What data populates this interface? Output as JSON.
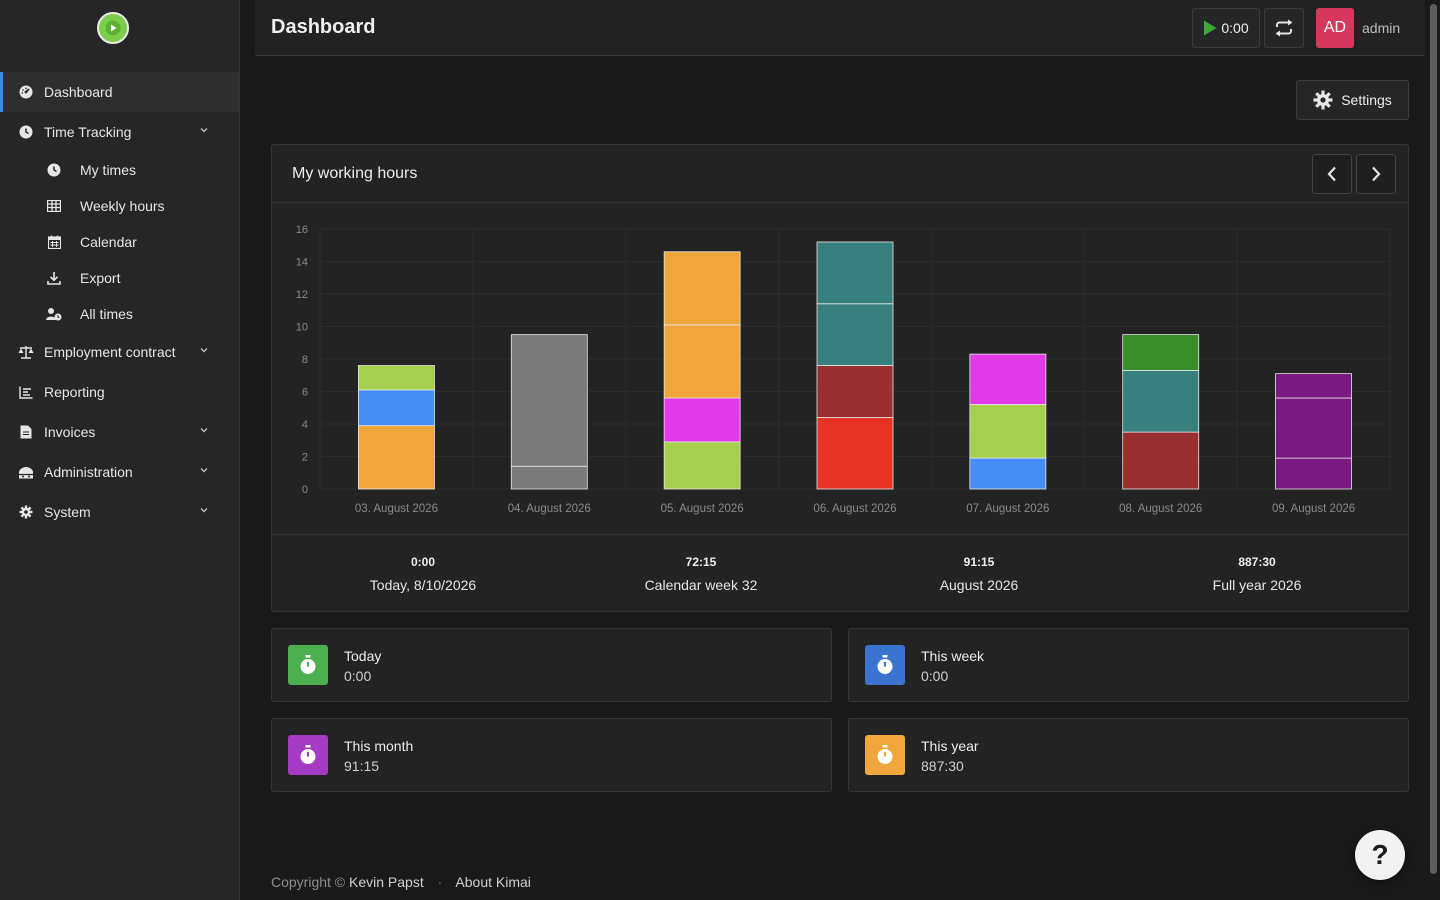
{
  "app": {
    "title": "Dashboard",
    "username": "admin",
    "avatar_initials": "AD",
    "timer": "0:00"
  },
  "sidebar": {
    "items": [
      {
        "label": "Dashboard",
        "icon": "dashboard-icon",
        "active": true
      },
      {
        "label": "Time Tracking",
        "icon": "clock-icon",
        "expandable": true
      },
      {
        "label": "My times",
        "icon": "clock-icon",
        "sub": true
      },
      {
        "label": "Weekly hours",
        "icon": "table-icon",
        "sub": true
      },
      {
        "label": "Calendar",
        "icon": "calendar-icon",
        "sub": true
      },
      {
        "label": "Export",
        "icon": "download-icon",
        "sub": true
      },
      {
        "label": "All times",
        "icon": "user-clock-icon",
        "sub": true
      },
      {
        "label": "Employment contract",
        "icon": "scale-icon",
        "expandable": true
      },
      {
        "label": "Reporting",
        "icon": "chart-icon"
      },
      {
        "label": "Invoices",
        "icon": "file-icon",
        "expandable": true
      },
      {
        "label": "Administration",
        "icon": "users-icon",
        "expandable": true
      },
      {
        "label": "System",
        "icon": "gear-icon",
        "expandable": true
      }
    ]
  },
  "toolbar": {
    "settings_label": "Settings"
  },
  "chart_card": {
    "title": "My working hours"
  },
  "chart_data": {
    "type": "bar",
    "stacked": true,
    "categories": [
      "03. August 2026",
      "04. August 2026",
      "05. August 2026",
      "06. August 2026",
      "07. August 2026",
      "08. August 2026",
      "09. August 2026"
    ],
    "ylim": [
      0,
      16
    ],
    "yticks": [
      0,
      2,
      4,
      6,
      8,
      10,
      12,
      14,
      16
    ],
    "grid": true,
    "bars": [
      [
        {
          "value": 3.9,
          "color": "#f0a63a"
        },
        {
          "value": 2.2,
          "color": "#468df5"
        },
        {
          "value": 1.5,
          "color": "#a6cf4e"
        }
      ],
      [
        {
          "value": 1.4,
          "color": "#7a7a7a"
        },
        {
          "value": 8.1,
          "color": "#7a7a7a"
        }
      ],
      [
        {
          "value": 2.9,
          "color": "#a6cf4e"
        },
        {
          "value": 2.7,
          "color": "#e23ae8"
        },
        {
          "value": 4.5,
          "color": "#f0a63a"
        },
        {
          "value": 4.5,
          "color": "#f0a63a"
        }
      ],
      [
        {
          "value": 4.4,
          "color": "#e63325"
        },
        {
          "value": 3.2,
          "color": "#9b2f2f"
        },
        {
          "value": 3.8,
          "color": "#38807e"
        },
        {
          "value": 3.8,
          "color": "#38807e"
        }
      ],
      [
        {
          "value": 1.9,
          "color": "#468df5"
        },
        {
          "value": 3.3,
          "color": "#a6cf4e"
        },
        {
          "value": 3.1,
          "color": "#e23ae8"
        }
      ],
      [
        {
          "value": 3.5,
          "color": "#9b2f2f"
        },
        {
          "value": 3.8,
          "color": "#38807e"
        },
        {
          "value": 2.2,
          "color": "#398d2a"
        }
      ],
      [
        {
          "value": 1.9,
          "color": "#7a1a82"
        },
        {
          "value": 3.7,
          "color": "#7a1a82"
        },
        {
          "value": 1.5,
          "color": "#7a1a82"
        }
      ]
    ]
  },
  "totals": [
    {
      "value": "0:00",
      "label": "Today, 8/10/2026"
    },
    {
      "value": "72:15",
      "label": "Calendar week 32"
    },
    {
      "value": "91:15",
      "label": "August 2026"
    },
    {
      "value": "887:30",
      "label": "Full year 2026"
    }
  ],
  "stats": [
    {
      "label": "Today",
      "value": "0:00",
      "color": "#4caf50"
    },
    {
      "label": "This week",
      "value": "0:00",
      "color": "#3b73d1"
    },
    {
      "label": "This month",
      "value": "91:15",
      "color": "#a53bc5"
    },
    {
      "label": "This year",
      "value": "887:30",
      "color": "#f0a63a"
    }
  ],
  "footer": {
    "copyright": "Copyright ©",
    "author": "Kevin Papst",
    "separator": "·",
    "about": "About Kimai"
  },
  "help": {
    "label": "?"
  }
}
